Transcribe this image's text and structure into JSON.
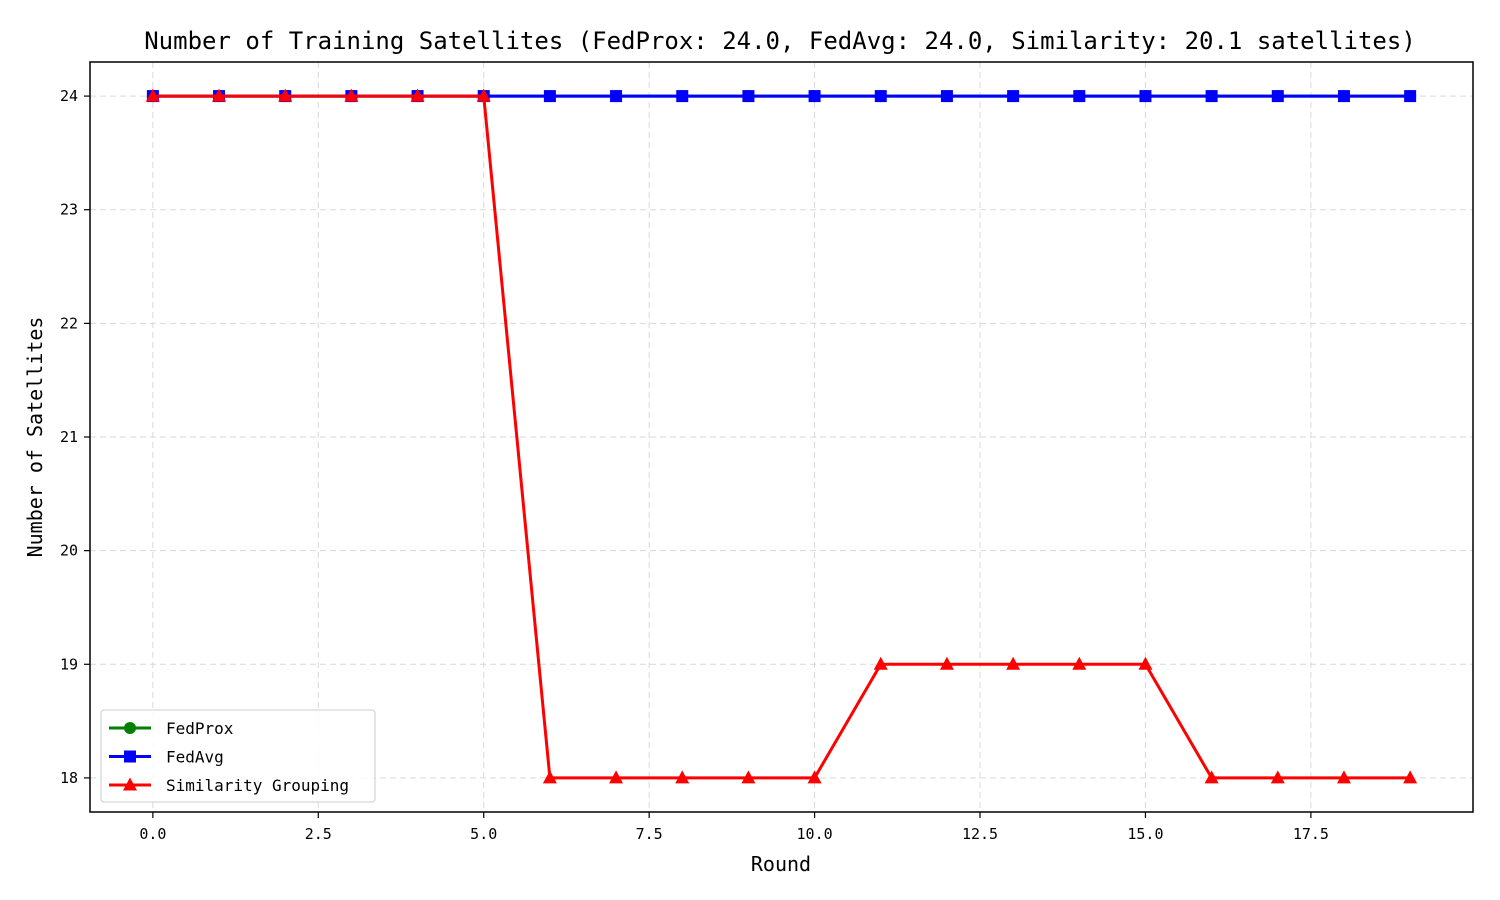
{
  "chart_data": {
    "type": "line",
    "title": "Number of Training Satellites (FedProx: 24.0, FedAvg: 24.0, Similarity: 20.1 satellites)",
    "xlabel": "Round",
    "ylabel": "Number of Satellites",
    "xlim": [
      -0.95,
      19.95
    ],
    "ylim": [
      17.7,
      24.3
    ],
    "xticks": [
      0,
      2.5,
      5,
      7.5,
      10,
      12.5,
      15,
      17.5
    ],
    "xtick_labels": [
      "0.0",
      "2.5",
      "5.0",
      "7.5",
      "10.0",
      "12.5",
      "15.0",
      "17.5"
    ],
    "yticks": [
      18,
      19,
      20,
      21,
      22,
      23,
      24
    ],
    "ytick_labels": [
      "18",
      "19",
      "20",
      "21",
      "22",
      "23",
      "24"
    ],
    "grid": true,
    "legend_position": "lower-left",
    "x": [
      0,
      1,
      2,
      3,
      4,
      5,
      6,
      7,
      8,
      9,
      10,
      11,
      12,
      13,
      14,
      15,
      16,
      17,
      18,
      19
    ],
    "series": [
      {
        "name": "FedProx",
        "color": "#008000",
        "marker": "circle",
        "values": [
          24,
          24,
          24,
          24,
          24,
          24,
          24,
          24,
          24,
          24,
          24,
          24,
          24,
          24,
          24,
          24,
          24,
          24,
          24,
          24
        ]
      },
      {
        "name": "FedAvg",
        "color": "#0000ff",
        "marker": "square",
        "values": [
          24,
          24,
          24,
          24,
          24,
          24,
          24,
          24,
          24,
          24,
          24,
          24,
          24,
          24,
          24,
          24,
          24,
          24,
          24,
          24
        ]
      },
      {
        "name": "Similarity Grouping",
        "color": "#ff0000",
        "marker": "triangle",
        "values": [
          24,
          24,
          24,
          24,
          24,
          24,
          18,
          18,
          18,
          18,
          18,
          19,
          19,
          19,
          19,
          19,
          18,
          18,
          18,
          18
        ]
      }
    ]
  }
}
